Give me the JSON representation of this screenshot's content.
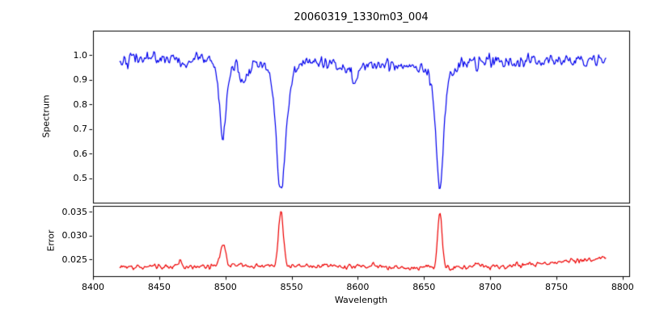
{
  "chart_data": {
    "type": "line",
    "title": "20060319_1330m03_004",
    "xlabel": "Wavelength",
    "x_range": [
      8420,
      8788
    ],
    "xlim": [
      8400,
      8805
    ],
    "xticks": [
      8400,
      8450,
      8500,
      8550,
      8600,
      8650,
      8700,
      8750,
      8800
    ],
    "xtick_labels": [
      "8400",
      "8450",
      "8500",
      "8550",
      "8600",
      "8650",
      "8700",
      "8750",
      "8800"
    ],
    "sampling_step": 0.7,
    "seed": 42,
    "legend": "none",
    "grid": false,
    "subplots": [
      {
        "name": "spectrum",
        "ylabel": "Spectrum",
        "ylim": [
          0.4,
          1.1
        ],
        "yticks": [
          0.5,
          0.6,
          0.7,
          0.8,
          0.9,
          1.0
        ],
        "ytick_labels": [
          "0.5",
          "0.6",
          "0.7",
          "0.8",
          "0.9",
          "1.0"
        ],
        "color": "#0000ee",
        "continuum": 0.972,
        "noise_sigma": 0.017,
        "absorption_lines": [
          {
            "center": 8498,
            "depth": 0.33,
            "width": 2.2
          },
          {
            "center": 8542,
            "depth": 0.54,
            "width": 3.2
          },
          {
            "center": 8662,
            "depth": 0.5,
            "width": 2.6
          },
          {
            "center": 8514,
            "depth": 0.1,
            "width": 3.0
          },
          {
            "center": 8598,
            "depth": 0.07,
            "width": 2.5
          },
          {
            "center": 8468,
            "depth": 0.05,
            "width": 1.8
          }
        ]
      },
      {
        "name": "error",
        "ylabel": "Error",
        "ylim": [
          0.0215,
          0.0362
        ],
        "yticks": [
          0.025,
          0.03,
          0.035
        ],
        "ytick_labels": [
          "0.025",
          "0.030",
          "0.035"
        ],
        "color": "#ee0000",
        "baseline": 0.0233,
        "noise_sigma": 0.00035,
        "right_end_rise_to": 0.026,
        "peaks": [
          {
            "center": 8498,
            "height": 0.0046,
            "width": 2.0
          },
          {
            "center": 8542,
            "height": 0.0115,
            "width": 1.8
          },
          {
            "center": 8662,
            "height": 0.012,
            "width": 1.6
          },
          {
            "center": 8466,
            "height": 0.0013,
            "width": 1.2
          },
          {
            "center": 8690,
            "height": 0.001,
            "width": 1.5
          },
          {
            "center": 8612,
            "height": 0.0006,
            "width": 1.5
          }
        ]
      }
    ]
  }
}
